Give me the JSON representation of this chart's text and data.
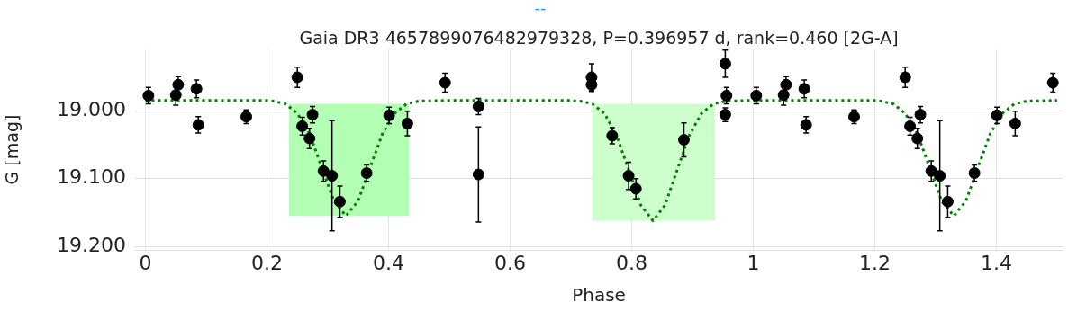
{
  "chart_data": {
    "type": "scatter",
    "subtitle": "--",
    "title": "Gaia DR3 4657899076482979328, P=0.396957 d, rank=0.460 [2G-A]",
    "xlabel": "Phase",
    "ylabel": "G [mag]",
    "xlim": [
      -0.017,
      1.509
    ],
    "ylim": [
      19.205,
      18.91
    ],
    "xticks": [
      0,
      0.2,
      0.4,
      0.6,
      0.8,
      1,
      1.2,
      1.4
    ],
    "yticks": [
      {
        "value": 19,
        "label": "19.000"
      },
      {
        "value": 19.1,
        "label": "19.100"
      },
      {
        "value": 19.2,
        "label": "19.200"
      }
    ],
    "grid": true,
    "legend": false,
    "marker": "circle",
    "bands": [
      {
        "axis": "x",
        "from": 0.236,
        "to": 0.434,
        "color": "#b3ffb3"
      },
      {
        "axis": "x",
        "from": 0.735,
        "to": 0.937,
        "color": "#ccffcc"
      }
    ],
    "series": [
      {
        "type": "scatter",
        "color": "#000000",
        "x": [
          0.005,
          0.05,
          0.054,
          0.084,
          0.087,
          0.166,
          0.25,
          0.258,
          0.27,
          0.275,
          0.293,
          0.307,
          0.32,
          0.364,
          0.401,
          0.431,
          0.493,
          0.548,
          0.548,
          0.734,
          0.734,
          0.768,
          0.795,
          0.807,
          0.886,
          0.954,
          0.956,
          0.954,
          1.005,
          1.05,
          1.054,
          1.084,
          1.087,
          1.166,
          1.25,
          1.258,
          1.27,
          1.275,
          1.293,
          1.307,
          1.32,
          1.364,
          1.401,
          1.431,
          1.493
        ],
        "values": [
          18.978,
          18.977,
          18.962,
          18.968,
          19.021,
          19.009,
          18.951,
          19.023,
          19.041,
          19.006,
          19.089,
          19.096,
          19.134,
          19.092,
          19.007,
          19.019,
          18.959,
          18.994,
          19.094,
          18.951,
          18.962,
          19.037,
          19.096,
          19.115,
          19.043,
          18.931,
          18.978,
          19.006,
          18.978,
          18.977,
          18.962,
          18.968,
          19.021,
          19.009,
          18.951,
          19.023,
          19.041,
          19.006,
          19.089,
          19.096,
          19.134,
          19.092,
          19.007,
          19.019,
          18.959
        ],
        "errors": [
          0.012,
          0.015,
          0.012,
          0.013,
          0.012,
          0.01,
          0.015,
          0.013,
          0.015,
          0.012,
          0.015,
          0.081,
          0.023,
          0.012,
          0.012,
          0.018,
          0.014,
          0.012,
          0.07,
          0.02,
          0.01,
          0.012,
          0.02,
          0.015,
          0.025,
          0.02,
          0.012,
          0.01,
          0.012,
          0.015,
          0.012,
          0.013,
          0.012,
          0.01,
          0.015,
          0.013,
          0.015,
          0.012,
          0.015,
          0.081,
          0.023,
          0.012,
          0.012,
          0.018,
          0.014
        ]
      },
      {
        "type": "line",
        "color": "#008000",
        "line_style": "dotted",
        "marker": "none",
        "x": [
          0,
          0.1,
          0.2,
          0.21,
          0.23,
          0.25,
          0.27,
          0.29,
          0.31,
          0.33,
          0.35,
          0.37,
          0.39,
          0.41,
          0.43,
          0.45,
          0.5,
          0.6,
          0.7,
          0.715,
          0.735,
          0.755,
          0.775,
          0.795,
          0.815,
          0.835,
          0.855,
          0.875,
          0.895,
          0.915,
          0.935,
          0.955,
          1,
          1.1,
          1.2,
          1.21,
          1.23,
          1.25,
          1.27,
          1.29,
          1.31,
          1.33,
          1.35,
          1.37,
          1.39,
          1.41,
          1.43,
          1.45,
          1.5
        ],
        "values": [
          18.985,
          18.985,
          18.985,
          18.986,
          18.99,
          19.004,
          19.034,
          19.083,
          19.133,
          19.155,
          19.133,
          19.083,
          19.034,
          19.004,
          18.99,
          18.986,
          18.985,
          18.985,
          18.985,
          18.986,
          18.99,
          19.004,
          19.036,
          19.087,
          19.139,
          19.162,
          19.139,
          19.087,
          19.036,
          19.004,
          18.99,
          18.986,
          18.985,
          18.985,
          18.985,
          18.986,
          18.99,
          19.004,
          19.034,
          19.083,
          19.133,
          19.155,
          19.133,
          19.083,
          19.034,
          19.004,
          18.99,
          18.986,
          18.985
        ]
      }
    ]
  }
}
